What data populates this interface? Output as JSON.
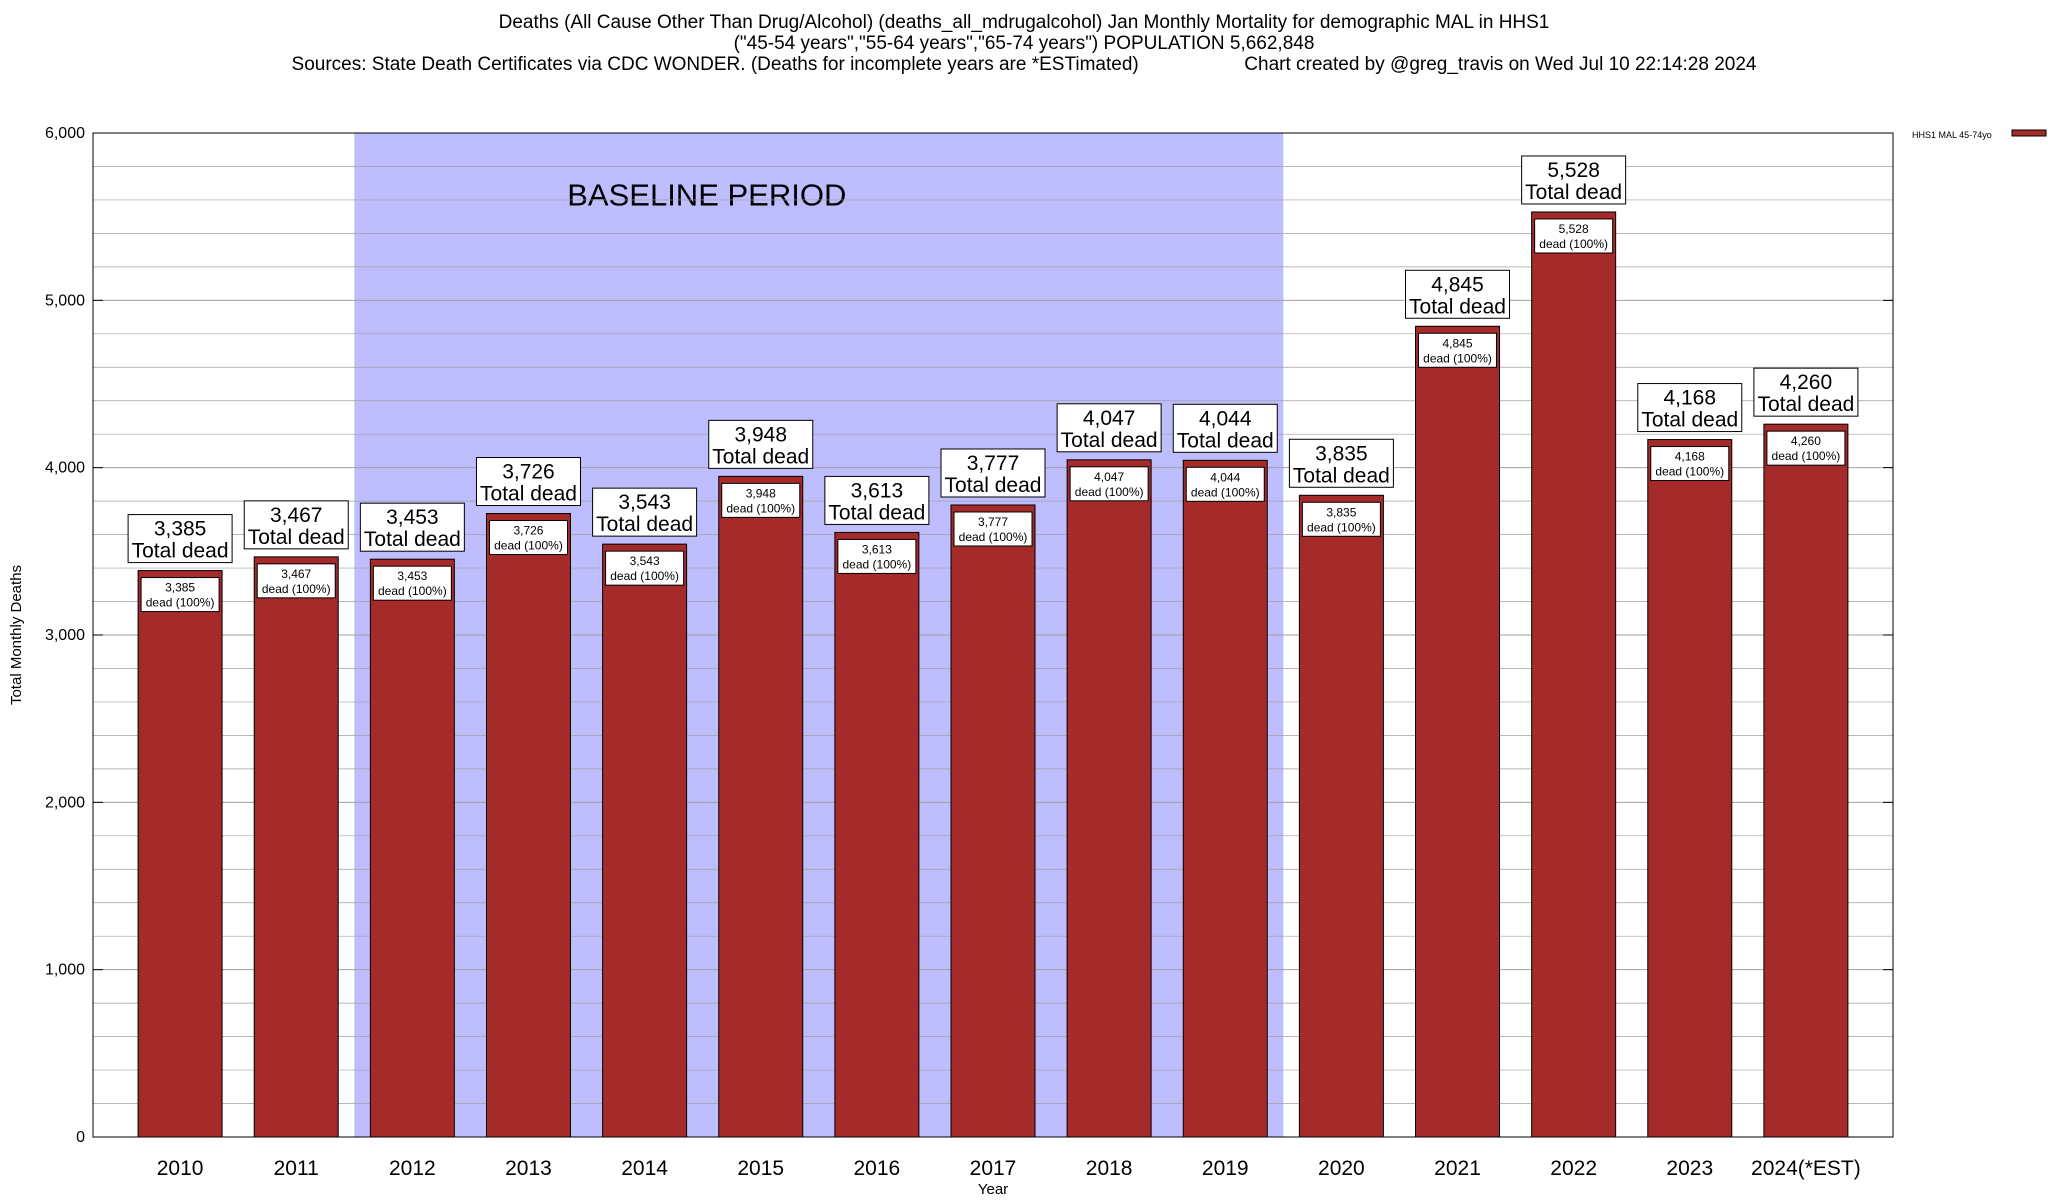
{
  "title": {
    "line1": "Deaths (All Cause Other Than Drug/Alcohol) (deaths_all_mdrugalcohol) Jan Monthly Mortality for demographic MAL in HHS1",
    "line2": "(\"45-54 years\",\"55-64 years\",\"65-74 years\") POPULATION 5,662,848",
    "line3": "Sources: State Death Certificates via CDC WONDER. (Deaths for incomplete years are *ESTimated)                    Chart created by @greg_travis on Wed Jul 10 22:14:28 2024"
  },
  "chart_data": {
    "type": "bar",
    "categories": [
      "2010",
      "2011",
      "2012",
      "2013",
      "2014",
      "2015",
      "2016",
      "2017",
      "2018",
      "2019",
      "2020",
      "2021",
      "2022",
      "2023",
      "2024(*EST)"
    ],
    "series": [
      {
        "name": "HHS1 MAL 45-74yo",
        "values": [
          3385,
          3467,
          3453,
          3726,
          3543,
          3948,
          3613,
          3777,
          4047,
          4044,
          3835,
          4845,
          5528,
          4168,
          4260
        ]
      }
    ],
    "value_labels": [
      "3,385",
      "3,467",
      "3,453",
      "3,726",
      "3,543",
      "3,948",
      "3,613",
      "3,777",
      "4,047",
      "4,044",
      "3,835",
      "4,845",
      "5,528",
      "4,168",
      "4,260"
    ],
    "total_label": "Total dead",
    "share_label": "dead (100%)",
    "xlabel": "Year",
    "ylabel": "Total Monthly Deaths",
    "ylim": [
      0,
      6000
    ],
    "yticks": [
      0,
      1000,
      2000,
      3000,
      4000,
      5000,
      6000
    ],
    "ytick_labels": [
      "0",
      "1,000",
      "2,000",
      "3,000",
      "4,000",
      "5,000",
      "6,000"
    ],
    "minor_grid_step": 200,
    "grid": true,
    "legend_placement": "top-right, outside plot",
    "baseline_period": {
      "label": "BASELINE PERIOD",
      "start": "2012",
      "end": "2019"
    },
    "colors": {
      "bar": "#a52a2a",
      "baseline": "#bebeff",
      "grid": "#a0a0a0"
    }
  }
}
